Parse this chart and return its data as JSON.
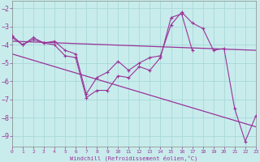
{
  "background_color": "#c8ecec",
  "grid_color": "#a8d8d8",
  "line_color": "#993399",
  "xlabel": "Windchill (Refroidissement éolien,°C)",
  "xlim": [
    0,
    23
  ],
  "ylim": [
    -9.6,
    -1.6
  ],
  "yticks": [
    -9,
    -8,
    -7,
    -6,
    -5,
    -4,
    -3,
    -2
  ],
  "xticks": [
    0,
    1,
    2,
    3,
    4,
    5,
    6,
    7,
    8,
    9,
    10,
    11,
    12,
    13,
    14,
    15,
    16,
    17,
    18,
    19,
    20,
    21,
    22,
    23
  ],
  "jagged1_x": [
    0,
    1,
    2,
    3,
    4,
    5,
    6,
    7,
    8,
    9,
    10,
    11,
    12,
    13,
    14,
    15,
    16,
    17,
    18,
    19,
    20,
    21,
    22,
    23
  ],
  "jagged1_y": [
    -3.5,
    -4.0,
    -3.6,
    -3.9,
    -3.8,
    -4.3,
    -4.5,
    -6.7,
    -5.8,
    -5.5,
    -4.9,
    -5.4,
    -5.0,
    -4.7,
    -4.6,
    -2.9,
    -2.2,
    -2.8,
    -3.1,
    -4.3,
    -4.2,
    -7.5,
    -9.3,
    -7.9
  ],
  "jagged2_x": [
    0,
    1,
    2,
    3,
    4,
    5,
    6,
    7,
    8,
    9,
    10,
    11,
    12,
    13,
    14,
    15,
    16,
    17
  ],
  "jagged2_y": [
    -3.6,
    -4.0,
    -3.7,
    -3.9,
    -4.0,
    -4.6,
    -4.7,
    -6.9,
    -6.5,
    -6.5,
    -5.7,
    -5.8,
    -5.2,
    -5.4,
    -4.7,
    -2.5,
    -2.3,
    -4.3
  ],
  "trend1_x": [
    0,
    23
  ],
  "trend1_y": [
    -3.8,
    -4.3
  ],
  "trend2_x": [
    0,
    23
  ],
  "trend2_y": [
    -4.5,
    -8.5
  ]
}
